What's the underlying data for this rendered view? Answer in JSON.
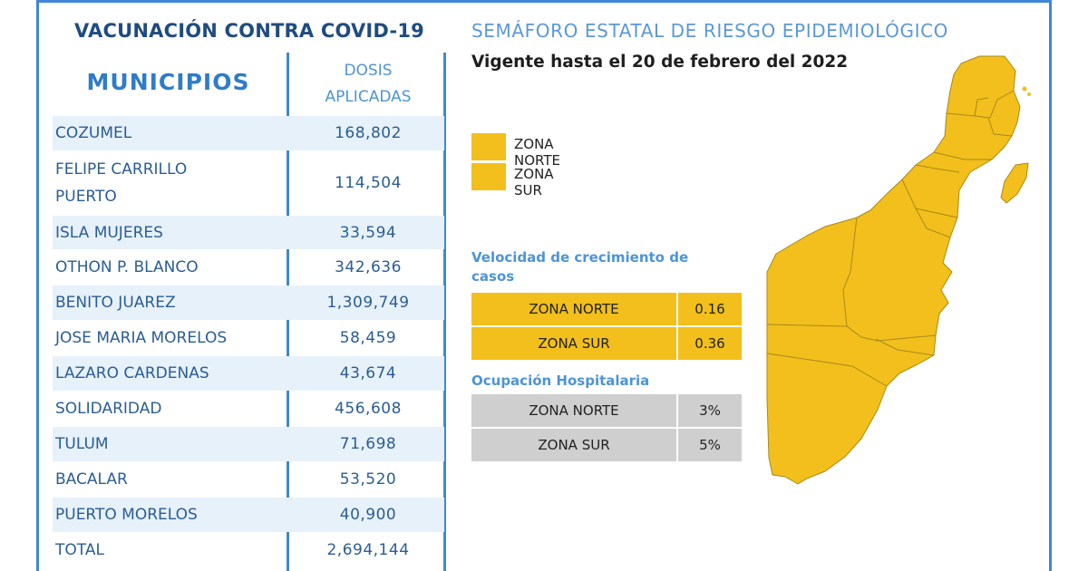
{
  "vaccination": {
    "title": "VACUNACIÓN CONTRA COVID-19",
    "col_municipios": "MUNICIPIOS",
    "col_dosis_line1": "DOSIS",
    "col_dosis_line2": "APLICADAS",
    "rows": [
      {
        "municipio": "COZUMEL",
        "dosis": "168,802"
      },
      {
        "municipio": "FELIPE CARRILLO PUERTO",
        "dosis": "114,504"
      },
      {
        "municipio": "ISLA MUJERES",
        "dosis": "33,594"
      },
      {
        "municipio": "OTHON P. BLANCO",
        "dosis": "342,636"
      },
      {
        "municipio": "BENITO JUAREZ",
        "dosis": "1,309,749"
      },
      {
        "municipio": "JOSE MARIA MORELOS",
        "dosis": "58,459"
      },
      {
        "municipio": "LAZARO CARDENAS",
        "dosis": "43,674"
      },
      {
        "municipio": "SOLIDARIDAD",
        "dosis": "456,608"
      },
      {
        "municipio": "TULUM",
        "dosis": "71,698"
      },
      {
        "municipio": "BACALAR",
        "dosis": "53,520"
      },
      {
        "municipio": "PUERTO MORELOS",
        "dosis": "40,900"
      },
      {
        "municipio": "TOTAL",
        "dosis": "2,694,144"
      }
    ]
  },
  "semaforo": {
    "title": "SEMÁFORO ESTATAL DE RIESGO EPIDEMIOLÓGICO",
    "subtitle": "Vigente hasta el 20 de febrero del 2022",
    "legend": [
      {
        "label": "ZONA NORTE",
        "color": "#f2bf1c"
      },
      {
        "label": "ZONA SUR",
        "color": "#f2bf1c"
      }
    ],
    "velocidad_title": "Velocidad de crecimiento de casos",
    "velocidad": [
      {
        "zona": "ZONA NORTE",
        "valor": "0.16"
      },
      {
        "zona": "ZONA SUR",
        "valor": "0.36"
      }
    ],
    "ocupacion_title": "Ocupación Hospitalaria",
    "ocupacion": [
      {
        "zona": "ZONA NORTE",
        "valor": "3%"
      },
      {
        "zona": "ZONA SUR",
        "valor": "5%"
      }
    ],
    "map_fill_color": "#f2bf1c"
  },
  "colors": {
    "frame_blue": "#3f87d6",
    "row_shade": "#e7f1fa",
    "yellow": "#f2bf1c",
    "grey": "#cfcfcf"
  }
}
